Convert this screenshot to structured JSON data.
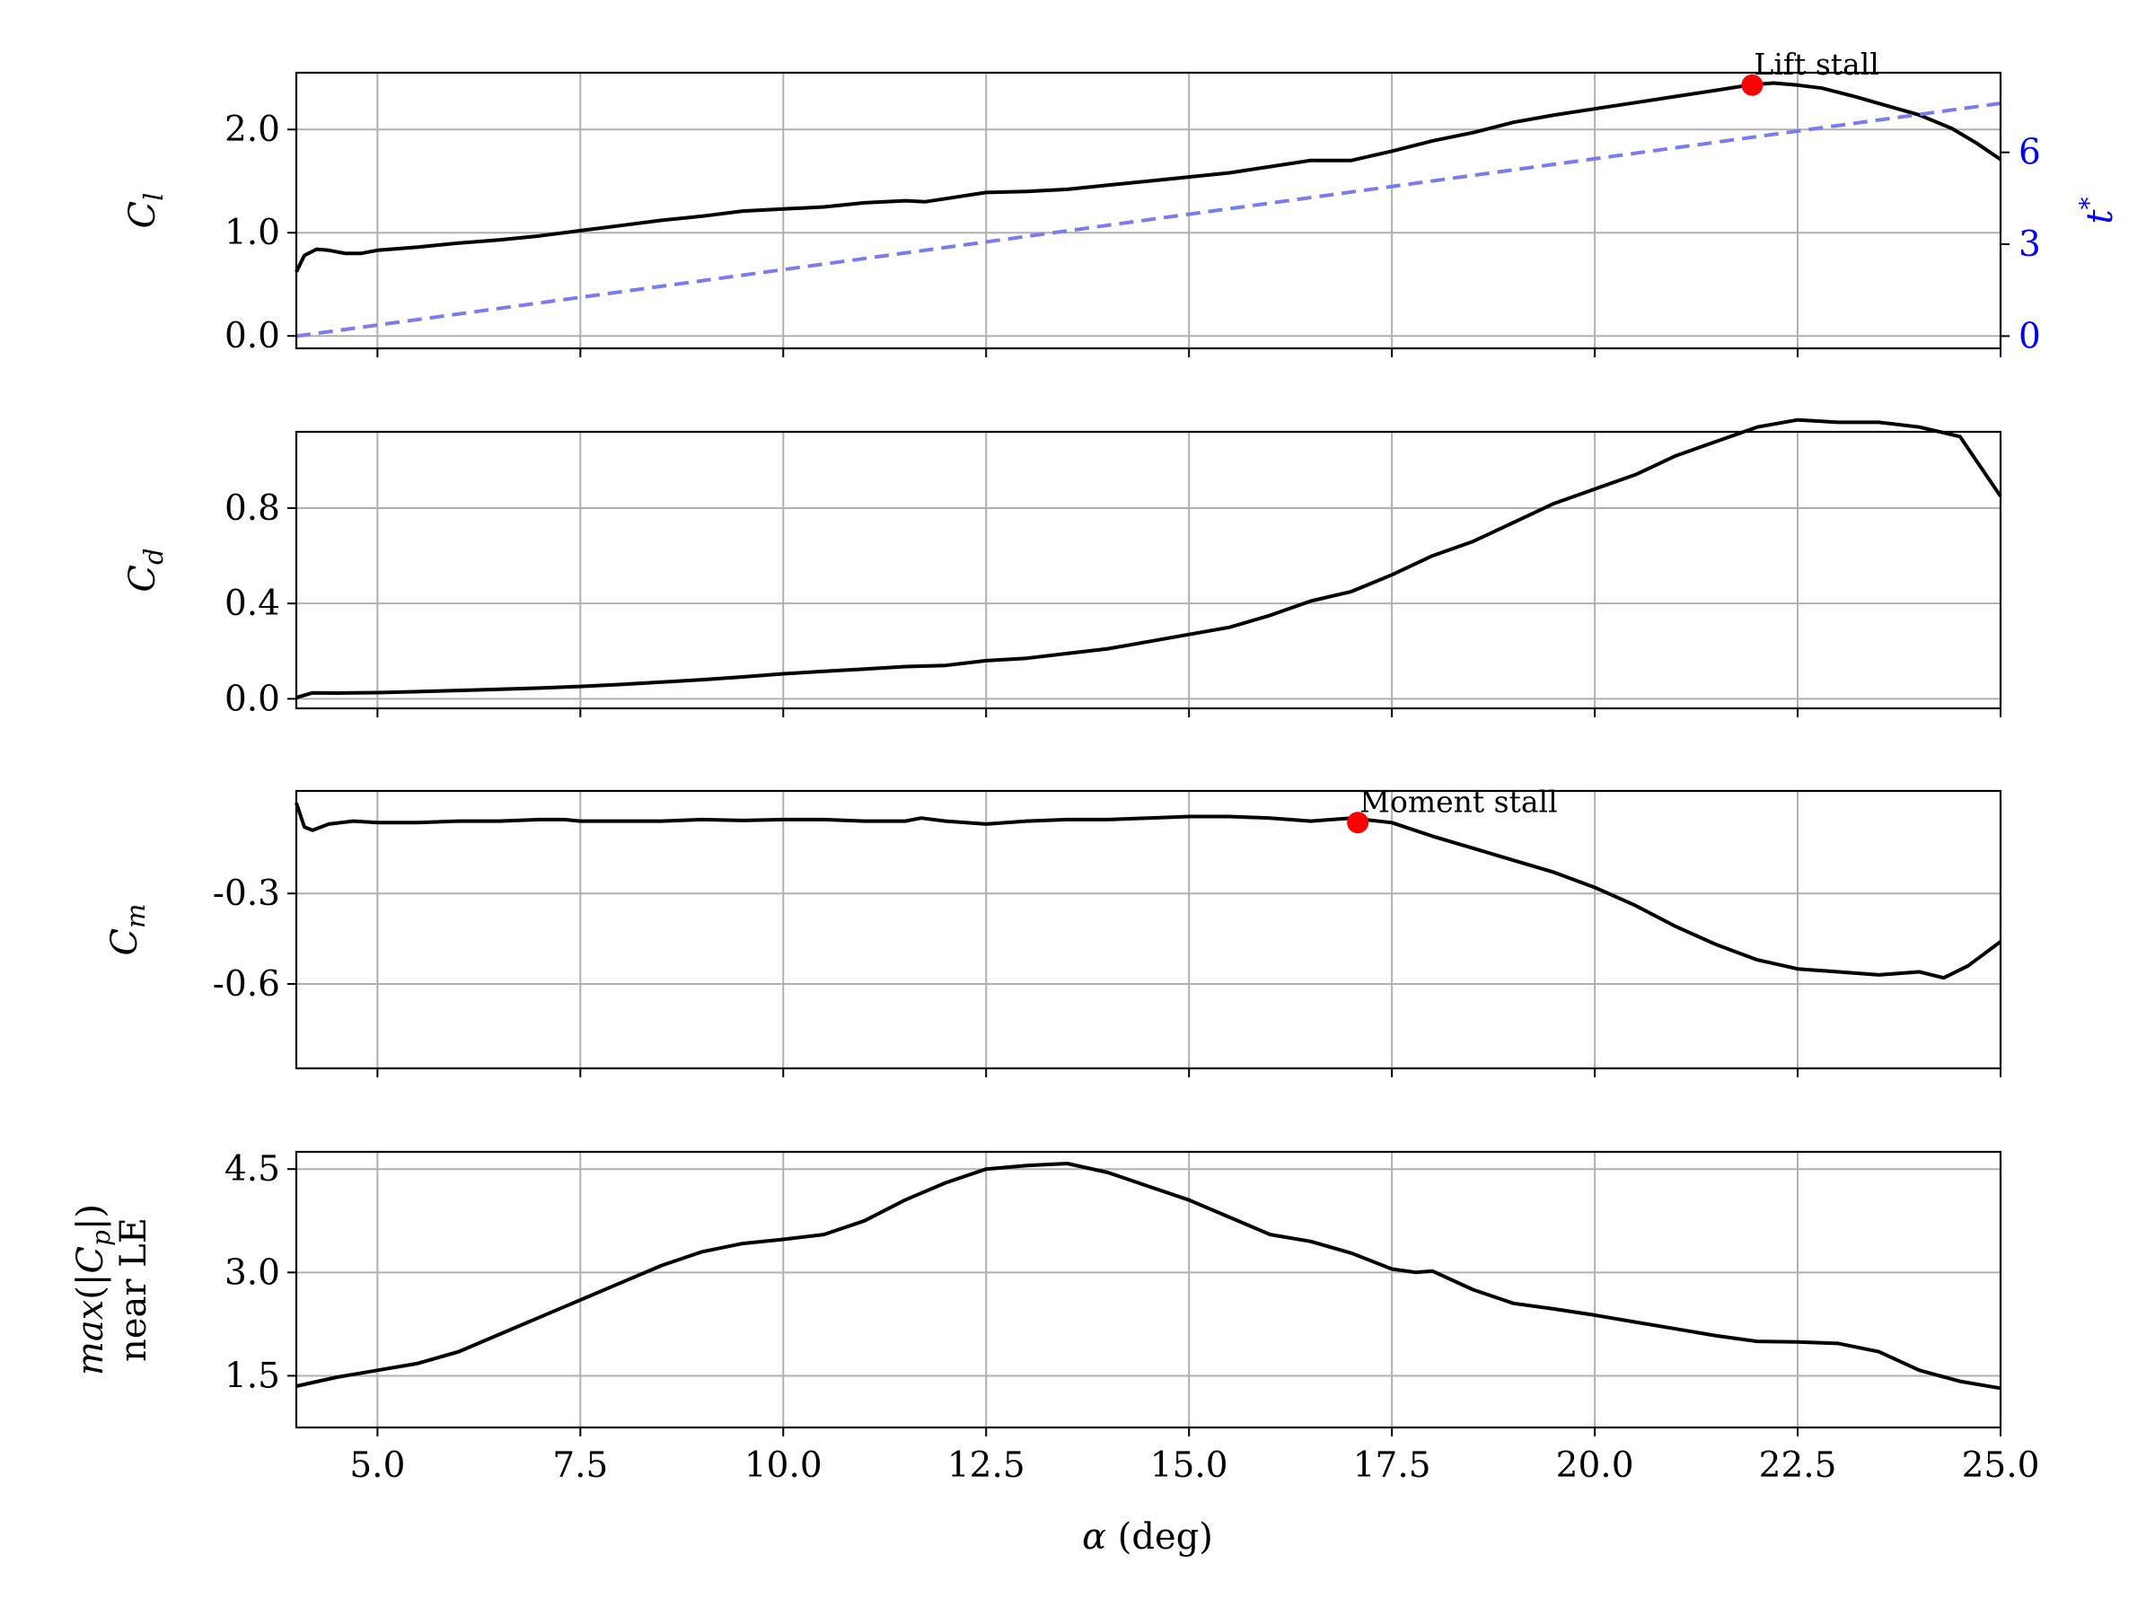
{
  "chart_data": [
    {
      "type": "line",
      "panel": "cl",
      "ylabel": "C_l",
      "xlim": [
        4.0,
        25.0
      ],
      "ylim": [
        -0.12,
        2.55
      ],
      "yticks": [
        0.0,
        1.0,
        2.0
      ],
      "ytick_labels": [
        "0.0",
        "1.0",
        "2.0"
      ],
      "grid": true,
      "series": [
        {
          "color": "#000000",
          "x": [
            4.0,
            4.1,
            4.25,
            4.4,
            4.6,
            4.8,
            5.0,
            5.5,
            6.0,
            6.5,
            7.0,
            7.5,
            8.0,
            8.5,
            9.0,
            9.5,
            10.0,
            10.5,
            11.0,
            11.5,
            11.75,
            12.0,
            12.5,
            13.0,
            13.5,
            14.0,
            14.5,
            15.0,
            15.5,
            16.0,
            16.5,
            17.0,
            17.5,
            18.0,
            18.5,
            19.0,
            19.5,
            20.0,
            20.5,
            21.0,
            21.5,
            21.9,
            22.2,
            22.5,
            22.8,
            23.2,
            23.6,
            24.0,
            24.4,
            24.7,
            25.0
          ],
          "y": [
            0.62,
            0.78,
            0.84,
            0.83,
            0.8,
            0.8,
            0.83,
            0.86,
            0.9,
            0.93,
            0.97,
            1.02,
            1.07,
            1.12,
            1.16,
            1.21,
            1.23,
            1.25,
            1.29,
            1.31,
            1.3,
            1.33,
            1.39,
            1.4,
            1.42,
            1.46,
            1.5,
            1.54,
            1.58,
            1.64,
            1.7,
            1.7,
            1.79,
            1.89,
            1.97,
            2.07,
            2.14,
            2.2,
            2.26,
            2.32,
            2.38,
            2.43,
            2.45,
            2.43,
            2.4,
            2.32,
            2.23,
            2.14,
            2.01,
            1.87,
            1.71
          ]
        },
        {
          "name": "t*",
          "axis": "right",
          "color": "#7b7bf0",
          "style": "dashed",
          "x": [
            4.0,
            25.0
          ],
          "y": [
            0.0,
            7.6
          ]
        }
      ],
      "markers": [
        {
          "x": 21.94,
          "y": 2.43,
          "color": "#ff0000",
          "label": "Lift stall"
        }
      ],
      "y2label": "t*",
      "y2lim": [
        -0.4,
        8.6
      ],
      "y2ticks": [
        0,
        3,
        6
      ],
      "y2tick_labels": [
        "0",
        "3",
        "6"
      ],
      "y2color": "#0000ff"
    },
    {
      "type": "line",
      "panel": "cd",
      "ylabel": "C_d",
      "xlim": [
        4.0,
        25.0
      ],
      "ylim": [
        -0.04,
        1.12
      ],
      "yticks": [
        0.0,
        0.4,
        0.8
      ],
      "ytick_labels": [
        "0.0",
        "0.4",
        "0.8"
      ],
      "grid": true,
      "series": [
        {
          "color": "#000000",
          "x": [
            4.0,
            4.2,
            4.5,
            5.0,
            5.5,
            6.0,
            6.5,
            7.0,
            7.5,
            8.0,
            8.5,
            9.0,
            9.5,
            10.0,
            10.5,
            11.0,
            11.5,
            12.0,
            12.5,
            13.0,
            13.5,
            14.0,
            14.5,
            15.0,
            15.5,
            16.0,
            16.5,
            17.0,
            17.5,
            18.0,
            18.5,
            19.0,
            19.5,
            20.0,
            20.5,
            21.0,
            21.5,
            22.0,
            22.5,
            23.0,
            23.5,
            24.0,
            24.5,
            25.0
          ],
          "y": [
            0.005,
            0.025,
            0.024,
            0.026,
            0.03,
            0.035,
            0.04,
            0.045,
            0.052,
            0.06,
            0.07,
            0.08,
            0.092,
            0.105,
            0.115,
            0.125,
            0.135,
            0.14,
            0.16,
            0.17,
            0.19,
            0.21,
            0.24,
            0.27,
            0.3,
            0.35,
            0.41,
            0.45,
            0.52,
            0.6,
            0.66,
            0.74,
            0.82,
            0.88,
            0.94,
            1.02,
            1.08,
            1.14,
            1.17,
            1.16,
            1.16,
            1.14,
            1.1,
            0.85
          ]
        }
      ]
    },
    {
      "type": "line",
      "panel": "cm",
      "ylabel": "C_m",
      "xlim": [
        4.0,
        25.0
      ],
      "ylim": [
        -0.88,
        0.04
      ],
      "yticks": [
        -0.3,
        -0.6
      ],
      "ytick_labels": [
        "-0.3",
        "-0.6"
      ],
      "grid": true,
      "series": [
        {
          "color": "#000000",
          "x": [
            4.0,
            4.1,
            4.2,
            4.4,
            4.7,
            5.0,
            5.5,
            6.0,
            6.5,
            7.0,
            7.3,
            7.5,
            8.0,
            8.5,
            9.0,
            9.5,
            10.0,
            10.5,
            11.0,
            11.5,
            11.7,
            12.0,
            12.5,
            13.0,
            13.5,
            14.0,
            14.5,
            15.0,
            15.5,
            16.0,
            16.5,
            17.0,
            17.5,
            18.0,
            18.5,
            19.0,
            19.5,
            20.0,
            20.5,
            21.0,
            21.5,
            22.0,
            22.5,
            23.0,
            23.5,
            24.0,
            24.3,
            24.6,
            25.0
          ],
          "y": [
            0.0,
            -0.08,
            -0.09,
            -0.07,
            -0.06,
            -0.065,
            -0.065,
            -0.06,
            -0.06,
            -0.055,
            -0.055,
            -0.06,
            -0.06,
            -0.06,
            -0.055,
            -0.058,
            -0.055,
            -0.055,
            -0.06,
            -0.06,
            -0.05,
            -0.06,
            -0.07,
            -0.06,
            -0.055,
            -0.055,
            -0.05,
            -0.045,
            -0.045,
            -0.05,
            -0.06,
            -0.05,
            -0.065,
            -0.11,
            -0.15,
            -0.19,
            -0.23,
            -0.28,
            -0.34,
            -0.41,
            -0.47,
            -0.52,
            -0.55,
            -0.56,
            -0.57,
            -0.56,
            -0.58,
            -0.54,
            -0.46
          ]
        }
      ],
      "markers": [
        {
          "x": 17.08,
          "y": -0.065,
          "color": "#ff0000",
          "label": "Moment stall"
        }
      ]
    },
    {
      "type": "line",
      "panel": "cp",
      "ylabel": "max(|C_p|) near LE",
      "xlabel": "α (deg)",
      "xlim": [
        4.0,
        25.0
      ],
      "xticks": [
        5.0,
        7.5,
        10.0,
        12.5,
        15.0,
        17.5,
        20.0,
        22.5,
        25.0
      ],
      "xtick_labels": [
        "5.0",
        "7.5",
        "10.0",
        "12.5",
        "15.0",
        "17.5",
        "20.0",
        "22.5",
        "25.0"
      ],
      "ylim": [
        0.75,
        4.75
      ],
      "yticks": [
        1.5,
        3.0,
        4.5
      ],
      "ytick_labels": [
        "1.5",
        "3.0",
        "4.5"
      ],
      "grid": true,
      "series": [
        {
          "color": "#000000",
          "x": [
            4.0,
            4.5,
            5.0,
            5.5,
            6.0,
            6.5,
            7.0,
            7.5,
            8.0,
            8.5,
            9.0,
            9.5,
            10.0,
            10.5,
            11.0,
            11.5,
            12.0,
            12.5,
            13.0,
            13.5,
            14.0,
            14.5,
            15.0,
            15.5,
            16.0,
            16.5,
            17.0,
            17.5,
            17.8,
            18.0,
            18.5,
            19.0,
            19.5,
            20.0,
            20.5,
            21.0,
            21.5,
            22.0,
            22.5,
            23.0,
            23.5,
            24.0,
            24.5,
            25.0
          ],
          "y": [
            1.35,
            1.48,
            1.58,
            1.68,
            1.85,
            2.1,
            2.35,
            2.6,
            2.85,
            3.1,
            3.3,
            3.42,
            3.48,
            3.55,
            3.75,
            4.05,
            4.3,
            4.5,
            4.55,
            4.58,
            4.45,
            4.25,
            4.05,
            3.8,
            3.55,
            3.45,
            3.28,
            3.05,
            3.0,
            3.02,
            2.75,
            2.55,
            2.47,
            2.38,
            2.28,
            2.18,
            2.08,
            2.0,
            1.99,
            1.97,
            1.85,
            1.58,
            1.42,
            1.32
          ]
        }
      ]
    }
  ]
}
